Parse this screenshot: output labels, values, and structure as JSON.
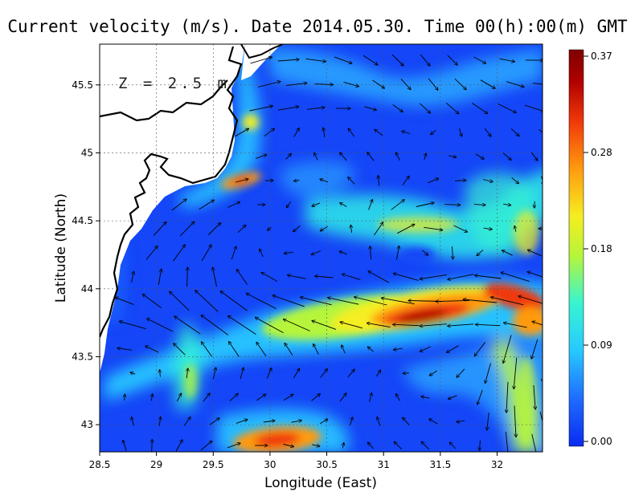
{
  "chart_data": {
    "type": "heatmap",
    "title": "Current velocity (m/s). Date 2014.05.30. Time 00(h):00(m) GMT",
    "xlabel": "Longitude (East)",
    "ylabel": "Latitude (North)",
    "annotation": "Z = 2.5 m",
    "xlim": [
      28.5,
      32.4
    ],
    "ylim": [
      42.8,
      45.8
    ],
    "xticks": [
      28.5,
      29,
      29.5,
      30,
      30.5,
      31,
      31.5,
      32
    ],
    "yticks": [
      43,
      43.5,
      44,
      44.5,
      45,
      45.5
    ],
    "grid": true,
    "colorbar": {
      "ticks": [
        "0.37",
        "0.28",
        "0.18",
        "0.09",
        "0.00"
      ],
      "min": 0.0,
      "max": 0.37,
      "colors": [
        "#0a2bf0",
        "#1f6cff",
        "#27c8ff",
        "#36f5d2",
        "#b6f53a",
        "#f5ee20",
        "#ff9a10",
        "#f03808",
        "#b00000",
        "#800000"
      ]
    },
    "high_speed_features": [
      {
        "lon": 31.2,
        "lat": 43.85,
        "speed": 0.37
      },
      {
        "lon": 31.8,
        "lat": 44.0,
        "speed": 0.33
      },
      {
        "lon": 30.9,
        "lat": 43.8,
        "speed": 0.32
      },
      {
        "lon": 29.75,
        "lat": 44.8,
        "speed": 0.3
      },
      {
        "lon": 30.1,
        "lat": 42.9,
        "speed": 0.31
      },
      {
        "lon": 29.8,
        "lat": 45.2,
        "speed": 0.24
      },
      {
        "lon": 32.3,
        "lat": 43.7,
        "speed": 0.3
      },
      {
        "lon": 31.3,
        "lat": 44.55,
        "speed": 0.22
      },
      {
        "lon": 32.1,
        "lat": 44.6,
        "speed": 0.2
      }
    ]
  }
}
